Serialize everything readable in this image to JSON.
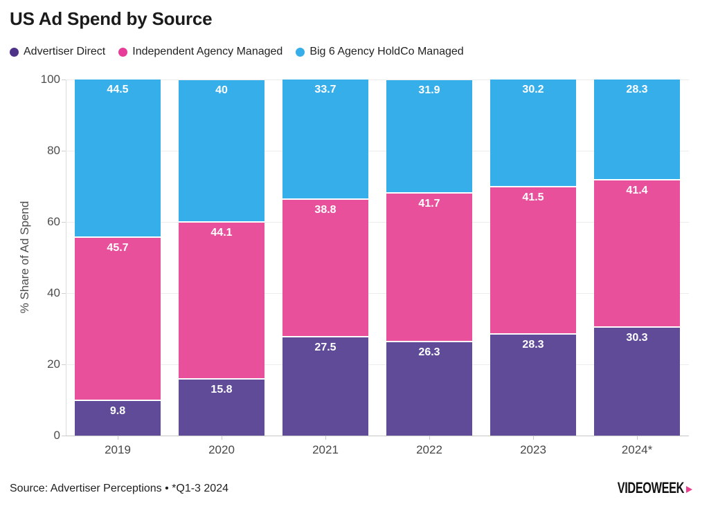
{
  "title": "US Ad Spend by Source",
  "chart_data": {
    "type": "bar",
    "stacked": true,
    "title": "US Ad Spend by Source",
    "categories": [
      "2019",
      "2020",
      "2021",
      "2022",
      "2023",
      "2024*"
    ],
    "series": [
      {
        "name": "Advertiser Direct",
        "color": "#5f4b98",
        "dot_color": "#4e3189",
        "values": [
          9.8,
          15.8,
          27.5,
          26.3,
          28.3,
          30.3
        ]
      },
      {
        "name": "Independent Agency Managed",
        "color": "#e8509c",
        "dot_color": "#e73c97",
        "values": [
          45.7,
          44.1,
          38.8,
          41.7,
          41.5,
          41.4
        ]
      },
      {
        "name": "Big 6 Agency HoldCo Managed",
        "color": "#36aeea",
        "dot_color": "#36aeea",
        "values": [
          44.5,
          40,
          33.7,
          31.9,
          30.2,
          28.3
        ]
      }
    ],
    "xlabel": "",
    "ylabel": "% Share of Ad Spend",
    "ylim": [
      0,
      100
    ],
    "yticks": [
      0,
      20,
      40,
      60,
      80,
      100
    ],
    "grid": true,
    "legend_position": "top",
    "value_label_color": "#ffffff"
  },
  "footer": {
    "source": "Source: Advertiser Perceptions • *Q1-3 2024",
    "logo": "VIDEOWEEK"
  }
}
